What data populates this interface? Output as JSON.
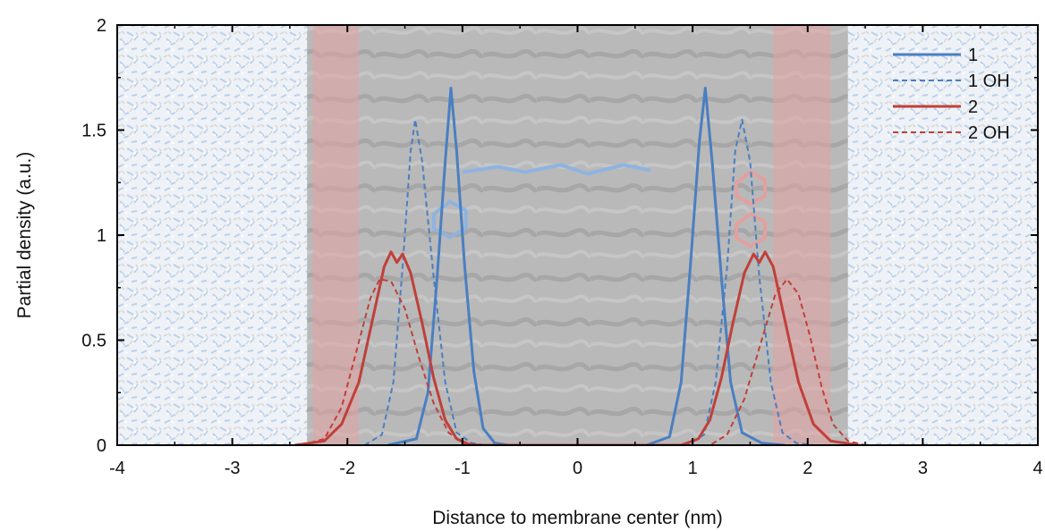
{
  "chart_data": {
    "type": "line",
    "xlabel": "Distance to membrane center (nm)",
    "ylabel": "Partial density (a.u.)",
    "xlim": [
      -4,
      4
    ],
    "ylim": [
      0,
      2
    ],
    "x_ticks": [
      -4,
      -3,
      -2,
      -1,
      0,
      1,
      2,
      3,
      4
    ],
    "y_ticks": [
      0,
      0.5,
      1,
      1.5,
      2
    ],
    "x_tick_labels": [
      "-4",
      "-3",
      "-2",
      "-1",
      "0",
      "1",
      "2",
      "3",
      "4"
    ],
    "y_tick_labels": [
      "0",
      "0.5",
      "1",
      "1.5",
      "2"
    ],
    "grid": false,
    "legend_position": "top-right",
    "background": "molecular-dynamics membrane snapshot (water at edges, grey lipid bilayer in center)",
    "series": [
      {
        "name": "1",
        "color": "#4a7fc1",
        "style": "solid",
        "points": [
          [
            -1.65,
            0
          ],
          [
            -1.4,
            0.03
          ],
          [
            -1.3,
            0.25
          ],
          [
            -1.22,
            0.8
          ],
          [
            -1.15,
            1.35
          ],
          [
            -1.1,
            1.7
          ],
          [
            -1.05,
            1.4
          ],
          [
            -0.98,
            0.85
          ],
          [
            -0.9,
            0.35
          ],
          [
            -0.82,
            0.08
          ],
          [
            -0.72,
            0.01
          ],
          [
            -0.6,
            0
          ],
          [
            0.6,
            0
          ],
          [
            0.8,
            0.04
          ],
          [
            0.9,
            0.3
          ],
          [
            0.98,
            0.85
          ],
          [
            1.06,
            1.45
          ],
          [
            1.11,
            1.7
          ],
          [
            1.17,
            1.35
          ],
          [
            1.25,
            0.8
          ],
          [
            1.33,
            0.3
          ],
          [
            1.43,
            0.06
          ],
          [
            1.6,
            0.01
          ],
          [
            1.8,
            0
          ]
        ]
      },
      {
        "name": "1 OH",
        "color": "#4a7fc1",
        "style": "dashed",
        "points": [
          [
            -1.85,
            0
          ],
          [
            -1.7,
            0.05
          ],
          [
            -1.6,
            0.3
          ],
          [
            -1.52,
            0.85
          ],
          [
            -1.45,
            1.4
          ],
          [
            -1.41,
            1.55
          ],
          [
            -1.35,
            1.35
          ],
          [
            -1.25,
            0.8
          ],
          [
            -1.15,
            0.3
          ],
          [
            -1.05,
            0.06
          ],
          [
            -0.92,
            0.01
          ],
          [
            -0.8,
            0
          ],
          [
            0.95,
            0
          ],
          [
            1.1,
            0.05
          ],
          [
            1.2,
            0.3
          ],
          [
            1.3,
            0.85
          ],
          [
            1.37,
            1.4
          ],
          [
            1.43,
            1.55
          ],
          [
            1.5,
            1.35
          ],
          [
            1.58,
            0.8
          ],
          [
            1.68,
            0.3
          ],
          [
            1.78,
            0.06
          ],
          [
            1.9,
            0.01
          ],
          [
            2.05,
            0
          ]
        ]
      },
      {
        "name": "2",
        "color": "#c0403a",
        "style": "solid",
        "points": [
          [
            -2.45,
            0
          ],
          [
            -2.2,
            0.02
          ],
          [
            -2.05,
            0.1
          ],
          [
            -1.9,
            0.3
          ],
          [
            -1.78,
            0.6
          ],
          [
            -1.68,
            0.85
          ],
          [
            -1.62,
            0.92
          ],
          [
            -1.57,
            0.87
          ],
          [
            -1.52,
            0.91
          ],
          [
            -1.45,
            0.82
          ],
          [
            -1.35,
            0.58
          ],
          [
            -1.25,
            0.32
          ],
          [
            -1.15,
            0.12
          ],
          [
            -1.05,
            0.03
          ],
          [
            -0.95,
            0.005
          ],
          [
            -0.85,
            0
          ],
          [
            0.9,
            0
          ],
          [
            1.05,
            0.03
          ],
          [
            1.15,
            0.12
          ],
          [
            1.25,
            0.32
          ],
          [
            1.35,
            0.58
          ],
          [
            1.45,
            0.82
          ],
          [
            1.53,
            0.91
          ],
          [
            1.58,
            0.87
          ],
          [
            1.63,
            0.92
          ],
          [
            1.7,
            0.85
          ],
          [
            1.8,
            0.6
          ],
          [
            1.92,
            0.3
          ],
          [
            2.05,
            0.1
          ],
          [
            2.2,
            0.02
          ],
          [
            2.45,
            0
          ]
        ]
      },
      {
        "name": "2 OH",
        "color": "#c0403a",
        "style": "dashed",
        "points": [
          [
            -2.4,
            0
          ],
          [
            -2.2,
            0.03
          ],
          [
            -2.05,
            0.18
          ],
          [
            -1.92,
            0.45
          ],
          [
            -1.8,
            0.7
          ],
          [
            -1.72,
            0.79
          ],
          [
            -1.62,
            0.78
          ],
          [
            -1.5,
            0.65
          ],
          [
            -1.38,
            0.42
          ],
          [
            -1.25,
            0.2
          ],
          [
            -1.12,
            0.06
          ],
          [
            -1.0,
            0.01
          ],
          [
            -0.9,
            0
          ],
          [
            1.15,
            0
          ],
          [
            1.3,
            0.05
          ],
          [
            1.45,
            0.22
          ],
          [
            1.6,
            0.5
          ],
          [
            1.72,
            0.72
          ],
          [
            1.82,
            0.79
          ],
          [
            1.92,
            0.72
          ],
          [
            2.02,
            0.52
          ],
          [
            2.12,
            0.28
          ],
          [
            2.22,
            0.1
          ],
          [
            2.35,
            0.02
          ],
          [
            2.5,
            0
          ]
        ]
      }
    ]
  }
}
